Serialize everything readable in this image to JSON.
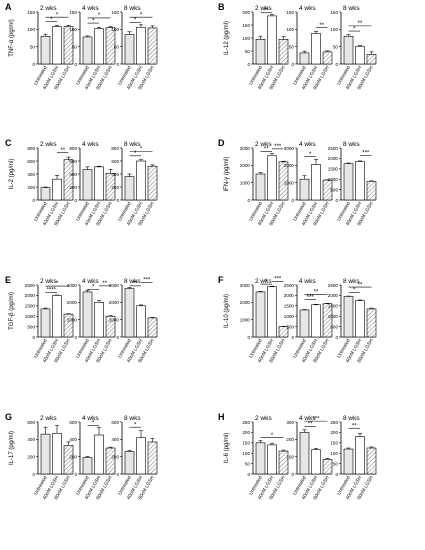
{
  "colors": {
    "bar": "#e6e6e6",
    "stroke": "#000000",
    "hatch": "#9a9a9a"
  },
  "chart_data": [
    {
      "type": "bar",
      "panel": "A",
      "ylabel": "TNF-α (pg/ml)",
      "categories": [
        "Untreated",
        "40nM LGSH",
        "80nM LGSH"
      ],
      "subplots": [
        {
          "title": "2 wks",
          "ylim": [
            0,
            150
          ],
          "yticks": [
            0,
            50,
            100,
            150
          ],
          "values": [
            80,
            108,
            108
          ],
          "errors": [
            6,
            3,
            3
          ],
          "sig": [
            {
              "from": 0,
              "to": 1,
              "label": "*",
              "y": 122
            },
            {
              "from": 0,
              "to": 2,
              "label": "*",
              "y": 135
            }
          ]
        },
        {
          "title": "4 wks",
          "ylim": [
            0,
            150
          ],
          "yticks": [
            0,
            50,
            100,
            150
          ],
          "values": [
            78,
            102,
            105
          ],
          "errors": [
            3,
            4,
            3
          ],
          "sig": [
            {
              "from": 0,
              "to": 1,
              "label": "*",
              "y": 118
            },
            {
              "from": 0,
              "to": 2,
              "label": "*",
              "y": 133
            }
          ]
        },
        {
          "title": "8 wks",
          "ylim": [
            0,
            150
          ],
          "yticks": [
            0,
            50,
            100,
            150
          ],
          "values": [
            85,
            106,
            104
          ],
          "errors": [
            8,
            7,
            6
          ],
          "sig": [
            {
              "from": 0,
              "to": 1,
              "label": "*",
              "y": 120
            },
            {
              "from": 0,
              "to": 2,
              "label": "*",
              "y": 135
            }
          ]
        }
      ]
    },
    {
      "type": "bar",
      "panel": "B",
      "ylabel": "IL-12 (pg/ml)",
      "categories": [
        "Untreated",
        "40nM LGSH",
        "80nM LGSH"
      ],
      "subplots": [
        {
          "title": "2 wks",
          "ylim": [
            0,
            200
          ],
          "yticks": [
            0,
            50,
            100,
            150,
            200
          ],
          "values": [
            95,
            185,
            95
          ],
          "errors": [
            12,
            5,
            10
          ],
          "sig": [
            {
              "from": 0,
              "to": 1,
              "label": "**",
              "y": 197
            }
          ]
        },
        {
          "title": "4 wks",
          "ylim": [
            0,
            150
          ],
          "yticks": [
            0,
            50,
            100,
            150
          ],
          "values": [
            32,
            88,
            35
          ],
          "errors": [
            5,
            6,
            3
          ],
          "sig": [
            {
              "from": 1,
              "to": 2,
              "label": "**",
              "y": 105
            }
          ]
        },
        {
          "title": "8 wks",
          "ylim": [
            0,
            150
          ],
          "yticks": [
            0,
            50,
            100,
            150
          ],
          "values": [
            80,
            50,
            28
          ],
          "errors": [
            5,
            3,
            7
          ],
          "sig": [
            {
              "from": 0,
              "to": 1,
              "label": "*",
              "y": 95
            },
            {
              "from": 0,
              "to": 2,
              "label": "**",
              "y": 110
            }
          ]
        }
      ]
    },
    {
      "type": "bar",
      "panel": "C",
      "ylabel": "IL-2 (pg/ml)",
      "categories": [
        "Untreated",
        "40nM LGSH",
        "80nM LGSH"
      ],
      "subplots": [
        {
          "title": "2 wks",
          "ylim": [
            0,
            800
          ],
          "yticks": [
            0,
            200,
            400,
            600,
            800
          ],
          "values": [
            190,
            320,
            620
          ],
          "errors": [
            10,
            60,
            40
          ],
          "sig": [
            {
              "from": 1,
              "to": 2,
              "label": "**",
              "y": 730
            }
          ]
        },
        {
          "title": "4 wks",
          "ylim": [
            0,
            800
          ],
          "yticks": [
            0,
            200,
            400,
            600,
            800
          ],
          "values": [
            470,
            510,
            410
          ],
          "errors": [
            40,
            10,
            60
          ],
          "sig": []
        },
        {
          "title": "8 wks",
          "ylim": [
            0,
            800
          ],
          "yticks": [
            0,
            200,
            400,
            600,
            800
          ],
          "values": [
            360,
            600,
            520
          ],
          "errors": [
            40,
            20,
            20
          ],
          "sig": [
            {
              "from": 0,
              "to": 1,
              "label": "*",
              "y": 680
            },
            {
              "from": 0,
              "to": 2,
              "label": "*",
              "y": 750
            }
          ]
        }
      ]
    },
    {
      "type": "bar",
      "panel": "D",
      "ylabel": "IFN-γ (pg/ml)",
      "categories": [
        "Untreated",
        "40nM LGSH",
        "80nM LGSH"
      ],
      "subplots": [
        {
          "title": "2 wks",
          "ylim": [
            0,
            3000
          ],
          "yticks": [
            0,
            1000,
            2000,
            3000
          ],
          "values": [
            1500,
            2550,
            2200
          ],
          "errors": [
            80,
            120,
            40
          ],
          "sig": [
            {
              "from": 0,
              "to": 1,
              "label": "**",
              "y": 2800
            },
            {
              "from": 1,
              "to": 2,
              "label": "***",
              "y": 2950
            }
          ]
        },
        {
          "title": "4 wks",
          "ylim": [
            0,
            3000
          ],
          "yticks": [
            0,
            1000,
            2000,
            3000
          ],
          "values": [
            1200,
            2050,
            1150
          ],
          "errors": [
            200,
            300,
            20
          ],
          "sig": [
            {
              "from": 0,
              "to": 1,
              "label": "*",
              "y": 2500
            }
          ]
        },
        {
          "title": "8 wks",
          "ylim": [
            0,
            2500
          ],
          "yticks": [
            0,
            500,
            1000,
            1500,
            2000,
            2500
          ],
          "values": [
            1750,
            1850,
            900
          ],
          "errors": [
            30,
            30,
            20
          ],
          "sig": [
            {
              "from": 1,
              "to": 2,
              "label": "***",
              "y": 2150
            }
          ]
        }
      ]
    },
    {
      "type": "bar",
      "panel": "E",
      "ylabel": "TGF-β (pg/ml)",
      "categories": [
        "Untreated",
        "40nM LGSH",
        "80nM LGSH"
      ],
      "subplots": [
        {
          "title": "2 wks",
          "ylim": [
            0,
            2500
          ],
          "yticks": [
            0,
            500,
            1000,
            1500,
            2000,
            2500
          ],
          "values": [
            1350,
            2000,
            1100
          ],
          "errors": [
            40,
            20,
            20
          ],
          "sig": [
            {
              "from": 0,
              "to": 1,
              "label": "****",
              "y": 2150
            },
            {
              "from": 0,
              "to": 2,
              "label": "*",
              "y": 2450
            }
          ]
        },
        {
          "title": "4 wks",
          "ylim": [
            0,
            3000
          ],
          "yticks": [
            0,
            1000,
            2000,
            3000
          ],
          "values": [
            2600,
            2000,
            1200
          ],
          "errors": [
            100,
            100,
            30
          ],
          "sig": [
            {
              "from": 0,
              "to": 1,
              "label": "*",
              "y": 2750
            },
            {
              "from": 1,
              "to": 2,
              "label": "**",
              "y": 2950
            }
          ]
        },
        {
          "title": "8 wks",
          "ylim": [
            0,
            3000
          ],
          "yticks": [
            0,
            1000,
            2000,
            3000
          ],
          "values": [
            2800,
            1800,
            1100
          ],
          "errors": [
            50,
            50,
            30
          ],
          "sig": [
            {
              "from": 0,
              "to": 1,
              "label": "**",
              "y": 2950
            },
            {
              "from": 1,
              "to": 2,
              "label": "***",
              "y": 3150
            }
          ]
        }
      ]
    },
    {
      "type": "bar",
      "panel": "F",
      "ylabel": "IL-10 (pg/ml)",
      "categories": [
        "Untreated",
        "40nM LGSH",
        "80nM LGSH"
      ],
      "subplots": [
        {
          "title": "2 wks",
          "ylim": [
            0,
            3000
          ],
          "yticks": [
            0,
            1000,
            2000,
            3000
          ],
          "values": [
            2600,
            2900,
            600
          ],
          "errors": [
            30,
            30,
            20
          ],
          "sig": [
            {
              "from": 0,
              "to": 1,
              "label": "*",
              "y": 3050
            },
            {
              "from": 1,
              "to": 2,
              "label": "***",
              "y": 3200
            }
          ]
        },
        {
          "title": "4 wks",
          "ylim": [
            0,
            2500
          ],
          "yticks": [
            0,
            500,
            1000,
            1500,
            2000,
            2500
          ],
          "values": [
            1300,
            1550,
            1600
          ],
          "errors": [
            20,
            20,
            20
          ],
          "sig": [
            {
              "from": 0,
              "to": 1,
              "label": "***",
              "y": 1800
            },
            {
              "from": 0,
              "to": 2,
              "label": "**",
              "y": 2050
            }
          ]
        },
        {
          "title": "8 wks",
          "ylim": [
            0,
            2500
          ],
          "yticks": [
            0,
            500,
            1000,
            1500,
            2000,
            2500
          ],
          "values": [
            1950,
            1750,
            1350
          ],
          "errors": [
            20,
            30,
            40
          ],
          "sig": [
            {
              "from": 0,
              "to": 1,
              "label": "*",
              "y": 2150
            },
            {
              "from": 0,
              "to": 2,
              "label": "**",
              "y": 2400
            }
          ]
        }
      ]
    },
    {
      "type": "bar",
      "panel": "G",
      "ylabel": "IL-17 (pg/ml)",
      "categories": [
        "Untreated",
        "40nM LGSH",
        "80nM LGSH"
      ],
      "subplots": [
        {
          "title": "2 wks",
          "ylim": [
            0,
            600
          ],
          "yticks": [
            0,
            200,
            400,
            600
          ],
          "values": [
            460,
            470,
            330
          ],
          "errors": [
            80,
            90,
            40
          ],
          "sig": []
        },
        {
          "title": "4 wks",
          "ylim": [
            0,
            600
          ],
          "yticks": [
            0,
            200,
            400,
            600
          ],
          "values": [
            190,
            450,
            300
          ],
          "errors": [
            10,
            90,
            10
          ],
          "sig": [
            {
              "from": 0,
              "to": 1,
              "label": "*",
              "y": 560
            }
          ]
        },
        {
          "title": "8 wks",
          "ylim": [
            0,
            600
          ],
          "yticks": [
            0,
            200,
            400,
            600
          ],
          "values": [
            260,
            420,
            370
          ],
          "errors": [
            10,
            80,
            40
          ],
          "sig": [
            {
              "from": 0,
              "to": 1,
              "label": "*",
              "y": 540
            }
          ]
        }
      ]
    },
    {
      "type": "bar",
      "panel": "H",
      "ylabel": "IL-6 (pg/ml)",
      "categories": [
        "Untreated",
        "40nM LGSH",
        "80nM LGSH"
      ],
      "subplots": [
        {
          "title": "2 wks",
          "ylim": [
            0,
            250
          ],
          "yticks": [
            0,
            50,
            100,
            150,
            200,
            250
          ],
          "values": [
            150,
            140,
            110
          ],
          "errors": [
            10,
            8,
            5
          ],
          "sig": [
            {
              "from": 0,
              "to": 2,
              "label": "*",
              "y": 175
            }
          ]
        },
        {
          "title": "4 wks",
          "ylim": [
            0,
            300
          ],
          "yticks": [
            0,
            100,
            200,
            300
          ],
          "values": [
            240,
            140,
            85
          ],
          "errors": [
            15,
            8,
            5
          ],
          "sig": [
            {
              "from": 0,
              "to": 1,
              "label": "**",
              "y": 275
            },
            {
              "from": 0,
              "to": 2,
              "label": "***",
              "y": 305
            }
          ]
        },
        {
          "title": "8 wks",
          "ylim": [
            0,
            250
          ],
          "yticks": [
            0,
            50,
            100,
            150,
            200,
            250
          ],
          "values": [
            120,
            180,
            125
          ],
          "errors": [
            5,
            15,
            5
          ],
          "sig": [
            {
              "from": 0,
              "to": 1,
              "label": "**",
              "y": 220
            }
          ]
        }
      ]
    }
  ]
}
